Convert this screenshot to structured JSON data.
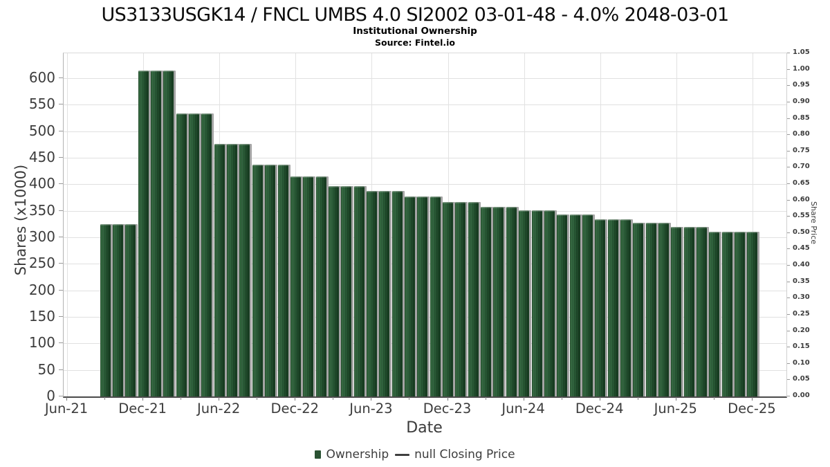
{
  "chart_data": {
    "type": "bar",
    "title": "US3133USGK14 / FNCL UMBS 4.0 SI2002 03-01-48 - 4.0% 2048-03-01",
    "subtitle": "Institutional Ownership",
    "source": "Source: Fintel.io",
    "xlabel": "Date",
    "ylabel_left": "Shares (x1000)",
    "ylabel_right": "Share Price",
    "grid": true,
    "legend_position": "bottom",
    "bar_color": "#24512d",
    "shadow_color": "#a4a4a4",
    "y_left_axis": {
      "min": 0,
      "max": 647,
      "tick_labels": [
        "0",
        "50",
        "100",
        "150",
        "200",
        "250",
        "300",
        "350",
        "400",
        "450",
        "500",
        "550",
        "600"
      ]
    },
    "y_right_axis": {
      "min": 0,
      "max": 1.05,
      "tick_labels": [
        "0.00",
        "0.05",
        "0.10",
        "0.15",
        "0.20",
        "0.25",
        "0.30",
        "0.35",
        "0.40",
        "0.45",
        "0.50",
        "0.55",
        "0.60",
        "0.65",
        "0.70",
        "0.75",
        "0.80",
        "0.85",
        "0.90",
        "0.95",
        "1.00",
        "1.05"
      ]
    },
    "x_tick_labels": [
      "Jun-21",
      "Dec-21",
      "Jun-22",
      "Dec-22",
      "Jun-23",
      "Dec-23",
      "Jun-24",
      "Dec-24",
      "Jun-25",
      "Dec-25"
    ],
    "legend": [
      {
        "label": "Ownership",
        "marker": "square",
        "color": "#2a5233"
      },
      {
        "label": "null Closing Price",
        "marker": "line",
        "color": "#3f3f3f"
      }
    ],
    "series": [
      {
        "name": "Ownership",
        "x": [
          "Sep-21",
          "Oct-21",
          "Nov-21",
          "Dec-21",
          "Jan-22",
          "Feb-22",
          "Mar-22",
          "Apr-22",
          "May-22",
          "Jun-22",
          "Jul-22",
          "Aug-22",
          "Sep-22",
          "Oct-22",
          "Nov-22",
          "Dec-22",
          "Jan-23",
          "Feb-23",
          "Mar-23",
          "Apr-23",
          "May-23",
          "Jun-23",
          "Jul-23",
          "Aug-23",
          "Sep-23",
          "Oct-23",
          "Nov-23",
          "Dec-23",
          "Jan-24",
          "Feb-24",
          "Mar-24",
          "Apr-24",
          "May-24",
          "Jun-24",
          "Jul-24",
          "Aug-24",
          "Sep-24",
          "Oct-24",
          "Nov-24",
          "Dec-24",
          "Jan-25",
          "Feb-25",
          "Mar-25",
          "Apr-25",
          "May-25",
          "Jun-25",
          "Jul-25",
          "Aug-25",
          "Sep-25",
          "Oct-25",
          "Nov-25",
          "Dec-25"
        ],
        "values": [
          325,
          325,
          325,
          614,
          614,
          614,
          534,
          534,
          534,
          476,
          476,
          476,
          437,
          437,
          437,
          415,
          415,
          415,
          397,
          397,
          397,
          388,
          388,
          388,
          377,
          377,
          377,
          367,
          367,
          367,
          358,
          358,
          358,
          351,
          351,
          351,
          343,
          343,
          343,
          334,
          334,
          334,
          327,
          327,
          327,
          319,
          319,
          319,
          311,
          311,
          311,
          311
        ]
      }
    ]
  }
}
